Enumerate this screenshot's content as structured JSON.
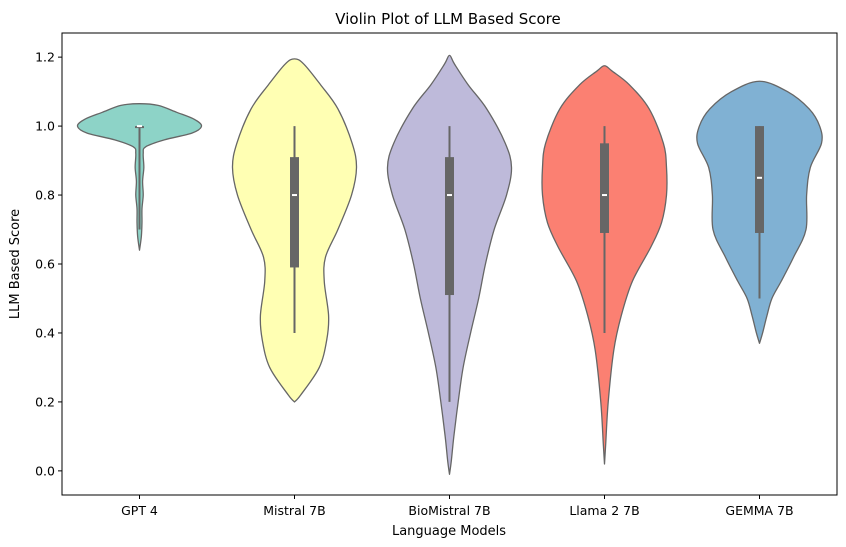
{
  "chart_data": {
    "type": "violin",
    "title": "Violin Plot of LLM Based Score",
    "xlabel": "Language Models",
    "ylabel": "LLM Based Score",
    "ylim": [
      -0.07,
      1.27
    ],
    "yticks": [
      0.0,
      0.2,
      0.4,
      0.6,
      0.8,
      1.0,
      1.2
    ],
    "ytick_labels": [
      "0.0",
      "0.2",
      "0.4",
      "0.6",
      "0.8",
      "1.0",
      "1.2"
    ],
    "categories": [
      "GPT 4",
      "Mistral 7B",
      "BioMistral 7B",
      "Llama 2 7B",
      "GEMMA 7B"
    ],
    "series": [
      {
        "name": "GPT 4",
        "color": "#8dd3c7",
        "min": 0.7,
        "q1": 1.0,
        "median": 1.0,
        "q3": 1.0,
        "max": 1.0,
        "density_relative": [
          [
            0.64,
            0.0
          ],
          [
            0.68,
            0.03
          ],
          [
            0.72,
            0.04
          ],
          [
            0.76,
            0.04
          ],
          [
            0.8,
            0.06
          ],
          [
            0.84,
            0.05
          ],
          [
            0.88,
            0.07
          ],
          [
            0.92,
            0.06
          ],
          [
            0.94,
            0.1
          ],
          [
            0.96,
            0.4
          ],
          [
            0.98,
            0.85
          ],
          [
            1.0,
            1.0
          ],
          [
            1.02,
            0.88
          ],
          [
            1.04,
            0.6
          ],
          [
            1.06,
            0.3
          ],
          [
            1.065,
            0.0
          ]
        ]
      },
      {
        "name": "Mistral 7B",
        "color": "#ffffb3",
        "min": 0.4,
        "q1": 0.59,
        "median": 0.8,
        "q3": 0.91,
        "max": 1.0,
        "density_relative": [
          [
            0.2,
            0.0
          ],
          [
            0.22,
            0.1
          ],
          [
            0.3,
            0.4
          ],
          [
            0.38,
            0.52
          ],
          [
            0.45,
            0.55
          ],
          [
            0.55,
            0.48
          ],
          [
            0.62,
            0.5
          ],
          [
            0.7,
            0.7
          ],
          [
            0.8,
            0.92
          ],
          [
            0.88,
            1.0
          ],
          [
            0.95,
            0.93
          ],
          [
            1.05,
            0.7
          ],
          [
            1.12,
            0.42
          ],
          [
            1.18,
            0.15
          ],
          [
            1.195,
            0.0
          ]
        ]
      },
      {
        "name": "BioMistral 7B",
        "color": "#bebada",
        "min": 0.2,
        "q1": 0.51,
        "median": 0.8,
        "q3": 0.91,
        "max": 1.0,
        "density_relative": [
          [
            -0.01,
            0.0
          ],
          [
            0.03,
            0.03
          ],
          [
            0.1,
            0.07
          ],
          [
            0.2,
            0.14
          ],
          [
            0.3,
            0.22
          ],
          [
            0.4,
            0.34
          ],
          [
            0.5,
            0.47
          ],
          [
            0.6,
            0.58
          ],
          [
            0.7,
            0.72
          ],
          [
            0.8,
            0.92
          ],
          [
            0.88,
            1.0
          ],
          [
            0.95,
            0.9
          ],
          [
            1.05,
            0.6
          ],
          [
            1.12,
            0.3
          ],
          [
            1.18,
            0.08
          ],
          [
            1.205,
            0.0
          ]
        ]
      },
      {
        "name": "Llama 2 7B",
        "color": "#fb8072",
        "min": 0.4,
        "q1": 0.69,
        "median": 0.8,
        "q3": 0.95,
        "max": 1.0,
        "density_relative": [
          [
            0.02,
            0.0
          ],
          [
            0.08,
            0.02
          ],
          [
            0.2,
            0.06
          ],
          [
            0.35,
            0.15
          ],
          [
            0.45,
            0.27
          ],
          [
            0.55,
            0.45
          ],
          [
            0.65,
            0.75
          ],
          [
            0.72,
            0.92
          ],
          [
            0.8,
            1.0
          ],
          [
            0.88,
            1.0
          ],
          [
            0.95,
            0.95
          ],
          [
            1.05,
            0.72
          ],
          [
            1.12,
            0.4
          ],
          [
            1.16,
            0.12
          ],
          [
            1.175,
            0.0
          ]
        ]
      },
      {
        "name": "GEMMA 7B",
        "color": "#80b1d3",
        "min": 0.5,
        "q1": 0.69,
        "median": 0.85,
        "q3": 1.0,
        "max": 1.0,
        "density_relative": [
          [
            0.37,
            0.0
          ],
          [
            0.4,
            0.05
          ],
          [
            0.45,
            0.12
          ],
          [
            0.5,
            0.2
          ],
          [
            0.55,
            0.35
          ],
          [
            0.62,
            0.55
          ],
          [
            0.7,
            0.75
          ],
          [
            0.8,
            0.76
          ],
          [
            0.88,
            0.82
          ],
          [
            0.95,
            1.0
          ],
          [
            1.0,
            0.97
          ],
          [
            1.05,
            0.8
          ],
          [
            1.1,
            0.45
          ],
          [
            1.13,
            0.0
          ]
        ]
      }
    ],
    "grid": false,
    "legend": "none"
  }
}
